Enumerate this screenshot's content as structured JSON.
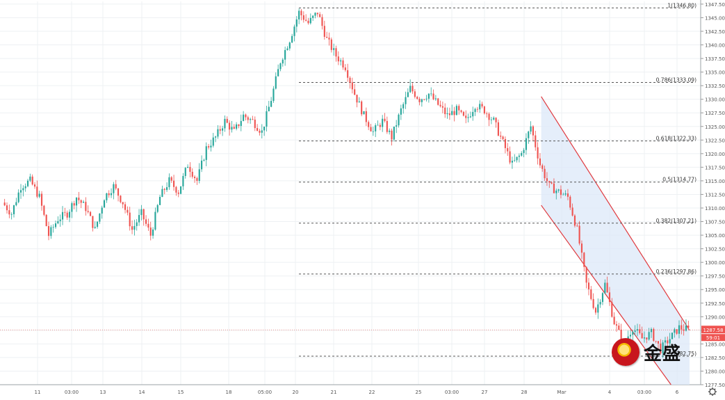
{
  "chart_data": {
    "type": "candlestick",
    "title": "",
    "y_range": [
      1277.5,
      1348
    ],
    "y_ticks": [
      "1347.50",
      "1345.00",
      "1342.50",
      "1340.00",
      "1337.50",
      "1335.00",
      "1332.50",
      "1330.00",
      "1327.50",
      "1325.00",
      "1322.50",
      "1320.00",
      "1317.50",
      "1315.00",
      "1312.50",
      "1310.00",
      "1307.50",
      "1305.00",
      "1302.50",
      "1300.00",
      "1297.50",
      "1295.00",
      "1292.50",
      "1290.00",
      "1287.50",
      "1285.00",
      "1282.50",
      "1280.00",
      "1277.50"
    ],
    "x_ticks": [
      "11",
      "03:00",
      "13",
      "14",
      "15",
      "18",
      "05:00",
      "20",
      "21",
      "22",
      "25",
      "03:00",
      "27",
      "28",
      "Mar",
      "4",
      "03:00",
      "6"
    ],
    "fib_levels": [
      {
        "label": "1(1346.80)",
        "value": 1346.8
      },
      {
        "label": "0.786(1333.09)",
        "value": 1333.09
      },
      {
        "label": "0.618(1322.33)",
        "value": 1322.33
      },
      {
        "label": "0.5(1314.77)",
        "value": 1314.77
      },
      {
        "label": "0.382(1307.21)",
        "value": 1307.21
      },
      {
        "label": "0.236(1297.86)",
        "value": 1297.86
      },
      {
        "label": "(1282.75)",
        "value": 1282.75
      }
    ],
    "last_price": "1287.58",
    "countdown": "59:01",
    "price_path": [
      1311,
      1309,
      1314,
      1315,
      1312,
      1305,
      1308,
      1309,
      1312,
      1310,
      1306,
      1312,
      1314,
      1311,
      1306,
      1309,
      1305,
      1312,
      1315,
      1313,
      1318,
      1315,
      1321,
      1323,
      1326,
      1324,
      1327,
      1326,
      1324,
      1330,
      1337,
      1341,
      1346,
      1344,
      1346,
      1341,
      1338,
      1336,
      1331,
      1327,
      1324,
      1326,
      1323,
      1328,
      1332,
      1330,
      1331,
      1329,
      1327,
      1328,
      1326,
      1329,
      1328,
      1326,
      1322,
      1318,
      1320,
      1325,
      1318,
      1314,
      1313,
      1312,
      1306,
      1296,
      1291,
      1296,
      1289,
      1285,
      1288,
      1286,
      1287,
      1284,
      1286,
      1288,
      1287.6
    ],
    "channel": {
      "upper": [
        {
          "i": 58,
          "v": 1330.5
        },
        {
          "i": 74,
          "v": 1287.5
        }
      ],
      "lower": [
        {
          "i": 58,
          "v": 1310.5
        },
        {
          "i": 72,
          "v": 1277.5
        }
      ]
    },
    "grid": true,
    "legend": "none"
  },
  "logo": {
    "text": "金盛",
    "icon": "jinsheng-logo-icon"
  },
  "toolbar": {
    "settings_icon": "gear-icon"
  }
}
